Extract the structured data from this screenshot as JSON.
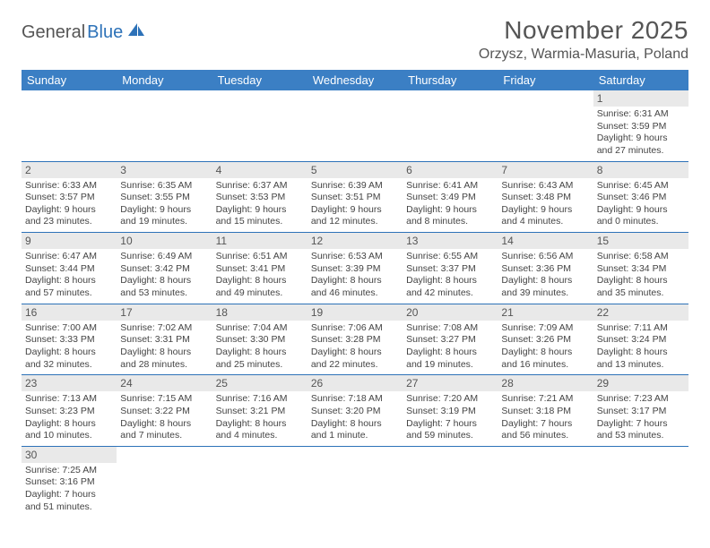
{
  "brand": {
    "part1": "General",
    "part2": "Blue"
  },
  "header": {
    "month_title": "November 2025",
    "location": "Orzysz, Warmia-Masuria, Poland"
  },
  "colors": {
    "header_bg": "#3b7fc4",
    "border": "#2d72b8",
    "daynum_bg": "#e9e9e9",
    "text": "#444",
    "title": "#555"
  },
  "days_of_week": [
    "Sunday",
    "Monday",
    "Tuesday",
    "Wednesday",
    "Thursday",
    "Friday",
    "Saturday"
  ],
  "weeks": [
    [
      null,
      null,
      null,
      null,
      null,
      null,
      {
        "n": "1",
        "sr": "6:31 AM",
        "ss": "3:59 PM",
        "dl": "9 hours and 27 minutes."
      }
    ],
    [
      {
        "n": "2",
        "sr": "6:33 AM",
        "ss": "3:57 PM",
        "dl": "9 hours and 23 minutes."
      },
      {
        "n": "3",
        "sr": "6:35 AM",
        "ss": "3:55 PM",
        "dl": "9 hours and 19 minutes."
      },
      {
        "n": "4",
        "sr": "6:37 AM",
        "ss": "3:53 PM",
        "dl": "9 hours and 15 minutes."
      },
      {
        "n": "5",
        "sr": "6:39 AM",
        "ss": "3:51 PM",
        "dl": "9 hours and 12 minutes."
      },
      {
        "n": "6",
        "sr": "6:41 AM",
        "ss": "3:49 PM",
        "dl": "9 hours and 8 minutes."
      },
      {
        "n": "7",
        "sr": "6:43 AM",
        "ss": "3:48 PM",
        "dl": "9 hours and 4 minutes."
      },
      {
        "n": "8",
        "sr": "6:45 AM",
        "ss": "3:46 PM",
        "dl": "9 hours and 0 minutes."
      }
    ],
    [
      {
        "n": "9",
        "sr": "6:47 AM",
        "ss": "3:44 PM",
        "dl": "8 hours and 57 minutes."
      },
      {
        "n": "10",
        "sr": "6:49 AM",
        "ss": "3:42 PM",
        "dl": "8 hours and 53 minutes."
      },
      {
        "n": "11",
        "sr": "6:51 AM",
        "ss": "3:41 PM",
        "dl": "8 hours and 49 minutes."
      },
      {
        "n": "12",
        "sr": "6:53 AM",
        "ss": "3:39 PM",
        "dl": "8 hours and 46 minutes."
      },
      {
        "n": "13",
        "sr": "6:55 AM",
        "ss": "3:37 PM",
        "dl": "8 hours and 42 minutes."
      },
      {
        "n": "14",
        "sr": "6:56 AM",
        "ss": "3:36 PM",
        "dl": "8 hours and 39 minutes."
      },
      {
        "n": "15",
        "sr": "6:58 AM",
        "ss": "3:34 PM",
        "dl": "8 hours and 35 minutes."
      }
    ],
    [
      {
        "n": "16",
        "sr": "7:00 AM",
        "ss": "3:33 PM",
        "dl": "8 hours and 32 minutes."
      },
      {
        "n": "17",
        "sr": "7:02 AM",
        "ss": "3:31 PM",
        "dl": "8 hours and 28 minutes."
      },
      {
        "n": "18",
        "sr": "7:04 AM",
        "ss": "3:30 PM",
        "dl": "8 hours and 25 minutes."
      },
      {
        "n": "19",
        "sr": "7:06 AM",
        "ss": "3:28 PM",
        "dl": "8 hours and 22 minutes."
      },
      {
        "n": "20",
        "sr": "7:08 AM",
        "ss": "3:27 PM",
        "dl": "8 hours and 19 minutes."
      },
      {
        "n": "21",
        "sr": "7:09 AM",
        "ss": "3:26 PM",
        "dl": "8 hours and 16 minutes."
      },
      {
        "n": "22",
        "sr": "7:11 AM",
        "ss": "3:24 PM",
        "dl": "8 hours and 13 minutes."
      }
    ],
    [
      {
        "n": "23",
        "sr": "7:13 AM",
        "ss": "3:23 PM",
        "dl": "8 hours and 10 minutes."
      },
      {
        "n": "24",
        "sr": "7:15 AM",
        "ss": "3:22 PM",
        "dl": "8 hours and 7 minutes."
      },
      {
        "n": "25",
        "sr": "7:16 AM",
        "ss": "3:21 PM",
        "dl": "8 hours and 4 minutes."
      },
      {
        "n": "26",
        "sr": "7:18 AM",
        "ss": "3:20 PM",
        "dl": "8 hours and 1 minute."
      },
      {
        "n": "27",
        "sr": "7:20 AM",
        "ss": "3:19 PM",
        "dl": "7 hours and 59 minutes."
      },
      {
        "n": "28",
        "sr": "7:21 AM",
        "ss": "3:18 PM",
        "dl": "7 hours and 56 minutes."
      },
      {
        "n": "29",
        "sr": "7:23 AM",
        "ss": "3:17 PM",
        "dl": "7 hours and 53 minutes."
      }
    ],
    [
      {
        "n": "30",
        "sr": "7:25 AM",
        "ss": "3:16 PM",
        "dl": "7 hours and 51 minutes."
      },
      null,
      null,
      null,
      null,
      null,
      null
    ]
  ],
  "labels": {
    "sunrise": "Sunrise:",
    "sunset": "Sunset:",
    "daylight": "Daylight:"
  }
}
